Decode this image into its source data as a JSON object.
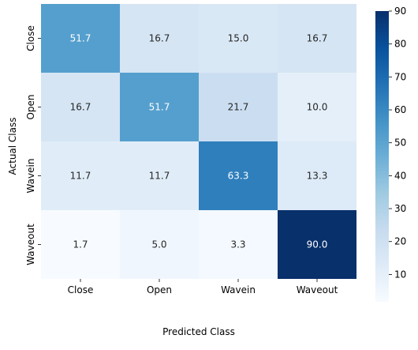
{
  "chart_data": {
    "type": "heatmap",
    "xlabel": "Predicted Class",
    "ylabel": "Actual Class",
    "x_categories": [
      "Close",
      "Open",
      "Wavein",
      "Waveout"
    ],
    "y_categories": [
      "Close",
      "Open",
      "Wavein",
      "Waveout"
    ],
    "values": [
      [
        51.7,
        16.7,
        15.0,
        16.7
      ],
      [
        16.7,
        51.7,
        21.7,
        10.0
      ],
      [
        11.7,
        11.7,
        63.3,
        13.3
      ],
      [
        1.7,
        5.0,
        3.3,
        90.0
      ]
    ],
    "colorbar": {
      "min": 1.7,
      "max": 90,
      "ticks": [
        10,
        20,
        30,
        40,
        50,
        60,
        70,
        80,
        90
      ],
      "colormap": "Blues"
    },
    "grid": false,
    "legend": "colorbar-right"
  }
}
